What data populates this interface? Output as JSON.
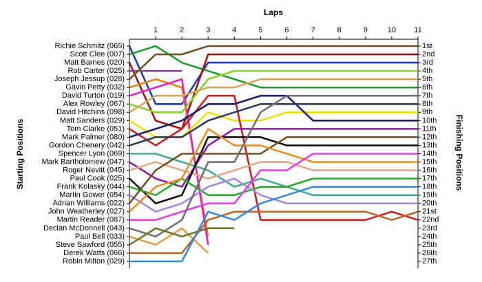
{
  "chart_data": {
    "type": "lap",
    "title": "Laps",
    "y_label": "Starting Positions",
    "y2_label": "Finishing Positions",
    "x": [
      0,
      1,
      2,
      3,
      4,
      5,
      6,
      7,
      8,
      9,
      10,
      11
    ],
    "xlim": [
      0,
      11
    ],
    "xticks": [
      1,
      2,
      3,
      4,
      5,
      6,
      7,
      8,
      9,
      10,
      11
    ],
    "ylim": [
      1,
      27
    ],
    "y_inverted": true,
    "yticks": [
      {
        "value": 1,
        "label": "1st"
      },
      {
        "value": 2,
        "label": "2nd"
      },
      {
        "value": 3,
        "label": "3rd"
      },
      {
        "value": 4,
        "label": "4th"
      },
      {
        "value": 5,
        "label": "5th"
      },
      {
        "value": 6,
        "label": "6th"
      },
      {
        "value": 7,
        "label": "7th"
      },
      {
        "value": 8,
        "label": "8th"
      },
      {
        "value": 9,
        "label": "9th"
      },
      {
        "value": 10,
        "label": "10th"
      },
      {
        "value": 11,
        "label": "11th"
      },
      {
        "value": 12,
        "label": "12th"
      },
      {
        "value": 13,
        "label": "13th"
      },
      {
        "value": 14,
        "label": "14th"
      },
      {
        "value": 15,
        "label": "15th"
      },
      {
        "value": 16,
        "label": "16th"
      },
      {
        "value": 17,
        "label": "17th"
      },
      {
        "value": 18,
        "label": "18th"
      },
      {
        "value": 19,
        "label": "19th"
      },
      {
        "value": 20,
        "label": "20th"
      },
      {
        "value": 21,
        "label": "21st"
      },
      {
        "value": 22,
        "label": "22nd"
      },
      {
        "value": 23,
        "label": "23rd"
      },
      {
        "value": 24,
        "label": "24th"
      },
      {
        "value": 25,
        "label": "25th"
      },
      {
        "value": 26,
        "label": "26th"
      },
      {
        "value": 27,
        "label": "27th"
      }
    ],
    "series": [
      {
        "name": "Richie Schmitz (065)",
        "color": "#1f3fa8",
        "values": [
          1,
          8,
          8,
          3,
          3,
          3,
          3,
          3,
          3,
          3,
          3,
          3
        ]
      },
      {
        "name": "Scott Clee (007)",
        "color": "#239a2f",
        "values": [
          2,
          1,
          3,
          4,
          5,
          6,
          6,
          6,
          6,
          6,
          6,
          6
        ]
      },
      {
        "name": "Matt Barnes (020)",
        "color": "#a01018",
        "values": [
          3,
          10,
          11,
          2,
          2,
          2,
          2,
          2,
          2,
          2,
          2,
          2
        ]
      },
      {
        "name": "Rob Carter (025)",
        "color": "#7c3c9c",
        "values": [
          4,
          4,
          4,
          null,
          null,
          null,
          null,
          null,
          null,
          null,
          null,
          null
        ]
      },
      {
        "name": "Joseph Jessup (028)",
        "color": "#6e5228",
        "values": [
          5,
          2,
          2,
          1,
          1,
          1,
          1,
          1,
          1,
          1,
          1,
          1
        ]
      },
      {
        "name": "Gavin Petty (032)",
        "color": "#e48410",
        "values": [
          6,
          5,
          6,
          24,
          null,
          null,
          null,
          null,
          null,
          null,
          null,
          null
        ]
      },
      {
        "name": "David Turton (019)",
        "color": "#e020c8",
        "values": [
          7,
          6,
          5,
          25,
          null,
          null,
          null,
          null,
          null,
          null,
          null,
          null
        ]
      },
      {
        "name": "Alex Rowley (067)",
        "color": "#84d424",
        "values": [
          8,
          9,
          9,
          5,
          4,
          4,
          4,
          4,
          4,
          4,
          4,
          4
        ]
      },
      {
        "name": "David Hitchins (098)",
        "color": "#d0a858",
        "values": [
          9,
          7,
          7,
          6,
          6,
          5,
          5,
          5,
          5,
          5,
          5,
          5
        ]
      },
      {
        "name": "Matt Sanders (029)",
        "color": "#e8e010",
        "values": [
          10,
          12,
          12,
          9,
          10,
          10,
          9,
          9,
          9,
          9,
          9,
          9
        ]
      },
      {
        "name": "Tom Clarke (051)",
        "color": "#c82020",
        "values": [
          11,
          13,
          11,
          7,
          7,
          22,
          22,
          22,
          22,
          22,
          21,
          22
        ]
      },
      {
        "name": "Mark Palmer (080)",
        "color": "#1c2064",
        "values": [
          12,
          11,
          10,
          8,
          8,
          7,
          7,
          10,
          10,
          10,
          10,
          10
        ]
      },
      {
        "name": "Gordon Chenery (042)",
        "color": "#303c50",
        "values": [
          13,
          12,
          12,
          10,
          9,
          8,
          8,
          8,
          8,
          8,
          8,
          8
        ]
      },
      {
        "name": "Spencer Lyon (069)",
        "color": "#48a898",
        "values": [
          14,
          14,
          15,
          16,
          18,
          17,
          18,
          19,
          19,
          19,
          19,
          19
        ]
      },
      {
        "name": "Mark Bartholomew (047)",
        "color": "#8c1ca0",
        "values": [
          15,
          17,
          18,
          13,
          11,
          11,
          11,
          11,
          11,
          11,
          11,
          11
        ]
      },
      {
        "name": "Roger Nevitt (045)",
        "color": "#e0a888",
        "values": [
          16,
          15,
          16,
          17,
          16,
          15,
          15,
          16,
          16,
          16,
          16,
          16
        ]
      },
      {
        "name": "Paul Cook (025)",
        "color": "#101010",
        "values": [
          17,
          20,
          19,
          12,
          12,
          12,
          13,
          13,
          13,
          13,
          13,
          13
        ]
      },
      {
        "name": "Frank Kolasky (044)",
        "color": "#2ca82c",
        "values": [
          18,
          19,
          17,
          19,
          19,
          18,
          18,
          17,
          17,
          17,
          17,
          17
        ]
      },
      {
        "name": "Martin Gower (054)",
        "color": "#a888d8",
        "values": [
          19,
          21,
          20,
          18,
          17,
          19,
          20,
          20,
          20,
          20,
          20,
          20
        ]
      },
      {
        "name": "Adrian Williams (022)",
        "color": "#705020",
        "values": [
          20,
          16,
          14,
          14,
          14,
          14,
          12,
          12,
          12,
          12,
          12,
          12
        ]
      },
      {
        "name": "John Weatherley (027)",
        "color": "#e89028",
        "values": [
          21,
          18,
          17,
          11,
          13,
          13,
          14,
          15,
          15,
          15,
          15,
          15
        ]
      },
      {
        "name": "Martin Reader (087)",
        "color": "#e040e0",
        "values": [
          22,
          22,
          21,
          20,
          20,
          16,
          16,
          14,
          14,
          14,
          14,
          14
        ]
      },
      {
        "name": "Declan McDonnell (043)",
        "color": "#707070",
        "values": [
          23,
          24,
          22,
          15,
          15,
          9,
          7,
          7,
          7,
          7,
          7,
          7
        ]
      },
      {
        "name": "Paul Bell (033)",
        "color": "#d8a050",
        "values": [
          24,
          25,
          23,
          26,
          null,
          null,
          null,
          null,
          null,
          null,
          null,
          null
        ]
      },
      {
        "name": "Steve Sawford (055)",
        "color": "#6c7a28",
        "values": [
          25,
          23,
          24,
          23,
          23,
          null,
          null,
          null,
          null,
          null,
          null,
          null
        ]
      },
      {
        "name": "Derek Watts (066)",
        "color": "#b86428",
        "values": [
          26,
          26,
          26,
          22,
          21,
          21,
          21,
          21,
          21,
          21,
          22,
          21
        ]
      },
      {
        "name": "Robin Milton (029)",
        "color": "#3888d8",
        "values": [
          27,
          27,
          27,
          21,
          22,
          20,
          19,
          18,
          18,
          18,
          18,
          18
        ]
      }
    ]
  }
}
